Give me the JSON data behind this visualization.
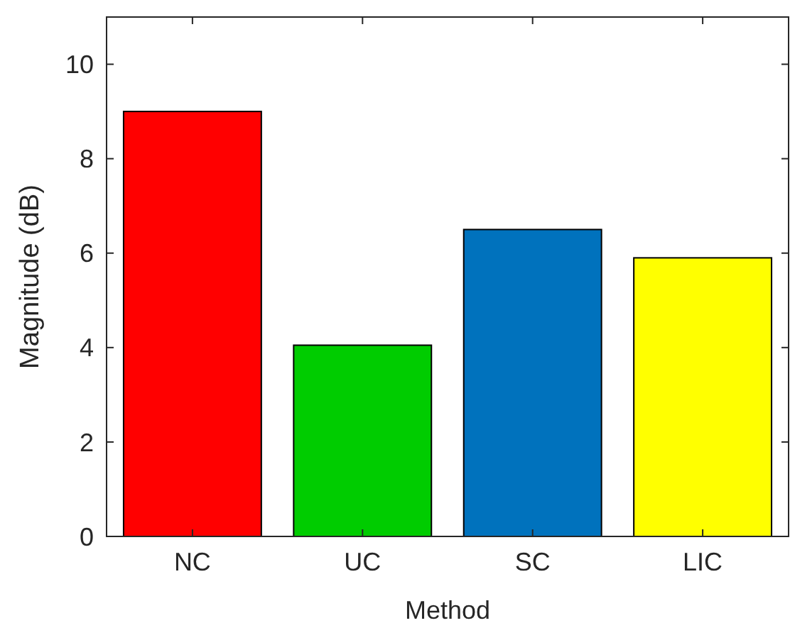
{
  "chart_data": {
    "type": "bar",
    "xlabel": "Method",
    "ylabel": "Magnitude (dB)",
    "categories": [
      "NC",
      "UC",
      "SC",
      "LIC"
    ],
    "values": [
      9.0,
      4.05,
      6.5,
      5.9
    ],
    "colors": [
      "#ff0000",
      "#00cc00",
      "#0072bd",
      "#ffff00"
    ],
    "ylim": [
      0,
      11
    ],
    "yticks": [
      0,
      2,
      4,
      6,
      8,
      10
    ],
    "grid": false
  }
}
